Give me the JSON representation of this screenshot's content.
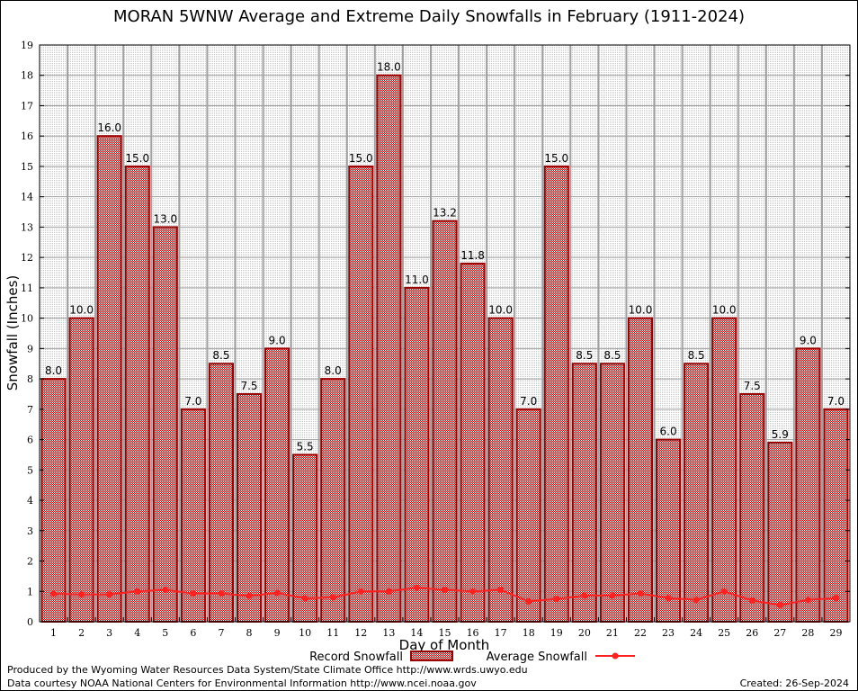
{
  "chart_data": {
    "type": "bar",
    "title": "MORAN 5WNW Average and Extreme Daily Snowfalls in February (1911-2024)",
    "xlabel": "Day of Month",
    "ylabel": "Snowfall (Inches)",
    "ylim": [
      0,
      19
    ],
    "yticks": [
      "0",
      "1",
      "2",
      "3",
      "4",
      "5",
      "6",
      "7",
      "8",
      "9",
      "10",
      "11",
      "12",
      "13",
      "14",
      "15",
      "16",
      "17",
      "18",
      "19"
    ],
    "categories": [
      "1",
      "2",
      "3",
      "4",
      "5",
      "6",
      "7",
      "8",
      "9",
      "10",
      "11",
      "12",
      "13",
      "14",
      "15",
      "16",
      "17",
      "18",
      "19",
      "20",
      "21",
      "22",
      "23",
      "24",
      "25",
      "26",
      "27",
      "28",
      "29"
    ],
    "series": [
      {
        "name": "Record Snowfall",
        "type": "bar",
        "color": "#cc0000",
        "values": [
          8.0,
          10.0,
          16.0,
          15.0,
          13.0,
          7.0,
          8.5,
          7.5,
          9.0,
          5.5,
          8.0,
          15.0,
          18.0,
          11.0,
          13.2,
          11.8,
          10.0,
          7.0,
          15.0,
          8.5,
          8.5,
          10.0,
          6.0,
          8.5,
          10.0,
          7.5,
          5.9,
          9.0,
          7.0
        ],
        "labels": [
          "8.0",
          "10.0",
          "16.0",
          "15.0",
          "13.0",
          "7.0",
          "8.5",
          "7.5",
          "9.0",
          "5.5",
          "8.0",
          "15.0",
          "18.0",
          "11.0",
          "13.2",
          "11.8",
          "10.0",
          "7.0",
          "15.0",
          "8.5",
          "8.5",
          "10.0",
          "6.0",
          "8.5",
          "10.0",
          "7.5",
          "5.9",
          "9.0",
          "7.0"
        ]
      },
      {
        "name": "Average Snowfall",
        "type": "line",
        "color": "#ff2020",
        "values": [
          0.92,
          0.9,
          0.9,
          1.0,
          1.05,
          0.93,
          0.93,
          0.85,
          0.95,
          0.77,
          0.8,
          1.0,
          1.0,
          1.12,
          1.05,
          1.0,
          1.05,
          0.67,
          0.75,
          0.86,
          0.86,
          0.93,
          0.78,
          0.72,
          1.0,
          0.7,
          0.55,
          0.72,
          0.78
        ]
      }
    ],
    "legend_position": "bottom-center",
    "grid": true
  },
  "footer": {
    "produced": "Produced by the Wyoming Water Resources Data System/State Climate Office http://www.wrds.uwyo.edu",
    "courtesy": "Data courtesy NOAA National Centers for Environmental Information http://www.ncei.noaa.gov",
    "created": "Created: 26-Sep-2024"
  }
}
